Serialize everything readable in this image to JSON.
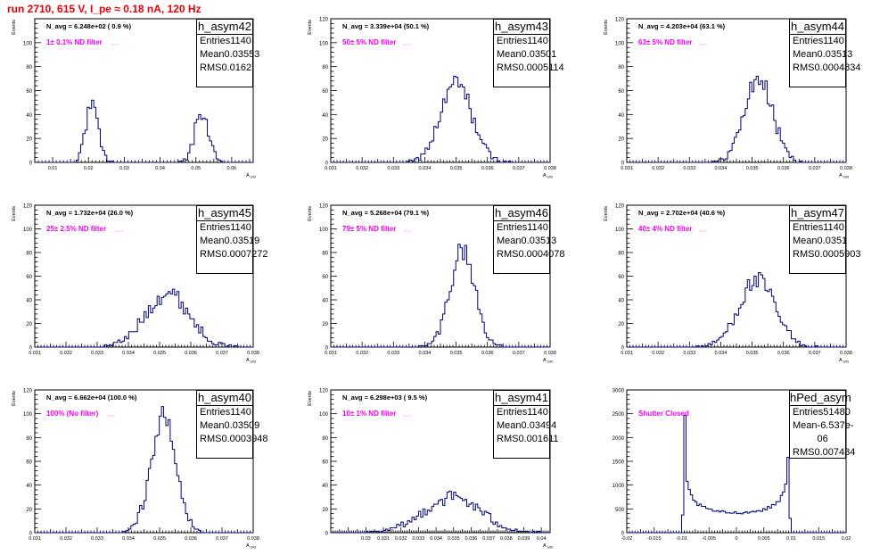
{
  "title": "run 2710,   615 V, I_pe ≈ 0.18 nA, 120 Hz",
  "chart_data": [
    {
      "type": "histogram",
      "name": "h_asym42",
      "ylabel": "Events",
      "xlabel": "A_UID",
      "xlim": [
        0.005,
        0.066
      ],
      "ylim": [
        0,
        120
      ],
      "xticks": [
        0.01,
        0.02,
        0.03,
        0.04,
        0.05,
        0.06
      ],
      "xtick_labels": [
        "0.01",
        "0.02",
        "0.03",
        "0.04",
        "0.05",
        "0.06"
      ],
      "yticks": [
        0,
        20,
        40,
        60,
        80,
        100
      ],
      "yticks_minor": 5,
      "annotation_navg": "N_avg = 6.248e+02 ( 0.9 %)",
      "annotation_filter": "1± 0.1% ND filter",
      "stats": {
        "entries": "1140",
        "mean": "0.03553",
        "rms": "0.0162"
      },
      "peaks": [
        {
          "center": 0.0209,
          "sigma": 0.0018,
          "amp": 46
        },
        {
          "center": 0.0516,
          "sigma": 0.0019,
          "amp": 42
        }
      ],
      "nbins": 100
    },
    {
      "type": "histogram",
      "name": "h_asym43",
      "ylabel": "Events",
      "xlabel": "A_UID",
      "xlim": [
        0.031,
        0.038
      ],
      "ylim": [
        0,
        120
      ],
      "xticks": [
        0.031,
        0.032,
        0.033,
        0.034,
        0.035,
        0.036,
        0.037,
        0.038
      ],
      "xtick_labels": [
        "0.031",
        "0.032",
        "0.033",
        "0.034",
        "0.035",
        "0.036",
        "0.037",
        "0.038"
      ],
      "yticks": [
        0,
        20,
        40,
        60,
        80,
        100,
        120
      ],
      "yticks_minor": 5,
      "annotation_navg": "N_avg = 3.339e+04 (50.1 %)",
      "annotation_filter": "50± 5% ND filter",
      "stats": {
        "entries": "1140",
        "mean": "0.03501",
        "rms": "0.0005114"
      },
      "peaks": [
        {
          "center": 0.03501,
          "sigma": 0.0005,
          "amp": 66
        }
      ],
      "nbins": 100
    },
    {
      "type": "histogram",
      "name": "h_asym44",
      "ylabel": "Events",
      "xlabel": "A_UID",
      "xlim": [
        0.031,
        0.038
      ],
      "ylim": [
        0,
        120
      ],
      "xticks": [
        0.031,
        0.032,
        0.033,
        0.034,
        0.035,
        0.036,
        0.037,
        0.038
      ],
      "xtick_labels": [
        "0.031",
        "0.032",
        "0.033",
        "0.034",
        "0.035",
        "0.036",
        "0.037",
        "0.038"
      ],
      "yticks": [
        0,
        20,
        40,
        60,
        80,
        100,
        120
      ],
      "yticks_minor": 5,
      "annotation_navg": "N_avg = 4.203e+04 (63.1 %)",
      "annotation_filter": "63± 5% ND filter",
      "stats": {
        "entries": "1140",
        "mean": "0.03513",
        "rms": "0.0004834"
      },
      "peaks": [
        {
          "center": 0.0352,
          "sigma": 0.00045,
          "amp": 70
        }
      ],
      "nbins": 100
    },
    {
      "type": "histogram",
      "name": "h_asym45",
      "ylabel": "Events",
      "xlabel": "A_UID",
      "xlim": [
        0.031,
        0.038
      ],
      "ylim": [
        0,
        120
      ],
      "xticks": [
        0.031,
        0.032,
        0.033,
        0.034,
        0.035,
        0.036,
        0.037,
        0.038
      ],
      "xtick_labels": [
        "0.031",
        "0.032",
        "0.033",
        "0.034",
        "0.035",
        "0.036",
        "0.037",
        "0.038"
      ],
      "yticks": [
        0,
        20,
        40,
        60,
        80,
        100,
        120
      ],
      "yticks_minor": 5,
      "annotation_navg": "N_avg = 1.732e+04 (26.0 %)",
      "annotation_filter": "25± 2.5% ND filter",
      "stats": {
        "entries": "1140",
        "mean": "0.03519",
        "rms": "0.0007272"
      },
      "peaks": [
        {
          "center": 0.03525,
          "sigma": 0.0007,
          "amp": 46
        }
      ],
      "nbins": 100
    },
    {
      "type": "histogram",
      "name": "h_asym46",
      "ylabel": "Events",
      "xlabel": "A_UID",
      "xlim": [
        0.031,
        0.038
      ],
      "ylim": [
        0,
        120
      ],
      "xticks": [
        0.031,
        0.032,
        0.033,
        0.034,
        0.035,
        0.036,
        0.037,
        0.038
      ],
      "xtick_labels": [
        "0.031",
        "0.032",
        "0.033",
        "0.034",
        "0.035",
        "0.036",
        "0.037",
        "0.038"
      ],
      "yticks": [
        0,
        20,
        40,
        60,
        80,
        100,
        120
      ],
      "yticks_minor": 5,
      "annotation_navg": "N_avg = 5.268e+04 (79.1 %)",
      "annotation_filter": "79± 5% ND filter",
      "stats": {
        "entries": "1140",
        "mean": "0.03513",
        "rms": "0.0004078"
      },
      "peaks": [
        {
          "center": 0.0352,
          "sigma": 0.0004,
          "amp": 82
        }
      ],
      "nbins": 100
    },
    {
      "type": "histogram",
      "name": "h_asym47",
      "ylabel": "Events",
      "xlabel": "A_UID",
      "xlim": [
        0.031,
        0.038
      ],
      "ylim": [
        0,
        120
      ],
      "xticks": [
        0.031,
        0.032,
        0.033,
        0.034,
        0.035,
        0.036,
        0.037,
        0.038
      ],
      "xtick_labels": [
        "0.031",
        "0.032",
        "0.033",
        "0.034",
        "0.035",
        "0.036",
        "0.037",
        "0.038"
      ],
      "yticks": [
        0,
        20,
        40,
        60,
        80,
        100,
        120
      ],
      "yticks_minor": 5,
      "annotation_navg": "N_avg = 2.702e+04 (40.6 %)",
      "annotation_filter": "40± 4% ND filter",
      "stats": {
        "entries": "1140",
        "mean": "0.0351",
        "rms": "0.0005903"
      },
      "peaks": [
        {
          "center": 0.03515,
          "sigma": 0.00058,
          "amp": 56
        }
      ],
      "nbins": 100
    },
    {
      "type": "histogram",
      "name": "h_asym40",
      "ylabel": "Events",
      "xlabel": "A_UID",
      "xlim": [
        0.031,
        0.038
      ],
      "ylim": [
        0,
        120
      ],
      "xticks": [
        0.031,
        0.032,
        0.033,
        0.034,
        0.035,
        0.036,
        0.037,
        0.038
      ],
      "xtick_labels": [
        "0.031",
        "0.032",
        "0.033",
        "0.034",
        "0.035",
        "0.036",
        "0.037",
        "0.038"
      ],
      "yticks": [
        0,
        20,
        40,
        60,
        80,
        100,
        120
      ],
      "yticks_minor": 5,
      "annotation_navg": "N_avg = 6.662e+04 (100.0 %)",
      "annotation_filter": "100% (No filter)",
      "stats": {
        "entries": "1140",
        "mean": "0.03509",
        "rms": "0.0003948"
      },
      "peaks": [
        {
          "center": 0.03512,
          "sigma": 0.0004,
          "amp": 96
        }
      ],
      "nbins": 100
    },
    {
      "type": "histogram",
      "name": "h_asym41",
      "ylabel": "Events",
      "xlabel": "A_UID",
      "xlim": [
        0.028,
        0.0405
      ],
      "ylim": [
        0,
        120
      ],
      "xticks": [
        0.03,
        0.031,
        0.032,
        0.033,
        0.034,
        0.035,
        0.036,
        0.037,
        0.038,
        0.039,
        0.04
      ],
      "xtick_labels": [
        "0.03",
        "0.031",
        "0.032",
        "0.033",
        "0.034",
        "0.035",
        "0.036",
        "0.037",
        "0.038",
        "0.039",
        "0.04"
      ],
      "yticks": [
        0,
        20,
        40,
        60,
        80,
        100,
        120
      ],
      "yticks_minor": 5,
      "annotation_navg": "N_avg = 6.298e+03 ( 9.5 %)",
      "annotation_filter": "10± 1% ND filter",
      "stats": {
        "entries": "1140",
        "mean": "0.03494",
        "rms": "0.001611"
      },
      "peaks": [
        {
          "center": 0.03494,
          "sigma": 0.0016,
          "amp": 30
        }
      ],
      "nbins": 100
    },
    {
      "type": "histogram",
      "name": "hPed_asym",
      "ylabel": "",
      "xlabel": "",
      "xlim": [
        -0.02,
        0.02
      ],
      "ylim": [
        0,
        3000
      ],
      "xticks": [
        -0.02,
        -0.015,
        -0.01,
        -0.005,
        0,
        0.005,
        0.01,
        0.015,
        0.02
      ],
      "xtick_labels": [
        "-0.02",
        "-0.015",
        "-0.01",
        "-0.005",
        "0",
        "0.005",
        "0.01",
        "0.015",
        "0.02"
      ],
      "yticks": [
        0,
        500,
        1000,
        1500,
        2000,
        2500,
        3000
      ],
      "yticks_minor": 5,
      "annotation_navg": "",
      "annotation_filter": "Shutter Closed",
      "stats": {
        "entries": "51480",
        "mean": "-6.537e-06",
        "rms": "0.007484"
      },
      "arcsine": {
        "half_width": 0.0098,
        "amp": 2450,
        "baseline": 420
      },
      "nbins": 100
    }
  ]
}
